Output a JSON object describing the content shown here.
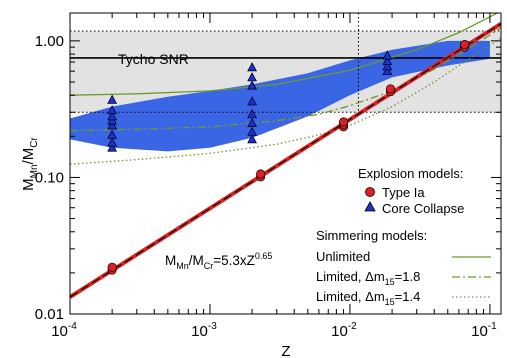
{
  "chart_data": {
    "type": "scatter",
    "xscale": "log",
    "yscale": "log",
    "xlim": [
      0.0001,
      0.12
    ],
    "ylim": [
      0.01,
      1.6
    ],
    "xlabel": "Z",
    "ylabel_parts": {
      "main": "M",
      "sub1": "Mn",
      "slash": "/M",
      "sub2": "Cr"
    },
    "x_ticks": [
      {
        "value": 0.0001,
        "base": "10",
        "exp": "-4"
      },
      {
        "value": 0.001,
        "base": "10",
        "exp": "-3"
      },
      {
        "value": 0.01,
        "base": "10",
        "exp": "-2"
      },
      {
        "value": 0.1,
        "base": "10",
        "exp": "-1"
      }
    ],
    "y_ticks": [
      {
        "value": 0.01,
        "label": "0.01"
      },
      {
        "value": 0.1,
        "label": "0.10"
      },
      {
        "value": 1.0,
        "label": "1.00"
      }
    ],
    "tycho": {
      "label": "Tycho SNR",
      "value": 0.75,
      "band_low": 0.3,
      "band_high": 1.18,
      "z_line": 0.0115
    },
    "relation_label": {
      "prefix": "M",
      "sub1": "Mn",
      "mid": "/M",
      "sub2": "Cr",
      "eq": "=5.3xZ",
      "exp": "0.65"
    },
    "relation": {
      "coef": 5.3,
      "exponent": 0.65
    },
    "type_ia": {
      "name": "Type Ia",
      "color": "#e02020",
      "points": [
        {
          "x": 0.0002,
          "y": 0.021
        },
        {
          "x": 0.0002,
          "y": 0.022
        },
        {
          "x": 0.0023,
          "y": 0.101
        },
        {
          "x": 0.0023,
          "y": 0.106
        },
        {
          "x": 0.009,
          "y": 0.235
        },
        {
          "x": 0.009,
          "y": 0.245
        },
        {
          "x": 0.009,
          "y": 0.255
        },
        {
          "x": 0.0195,
          "y": 0.425
        },
        {
          "x": 0.0195,
          "y": 0.445
        },
        {
          "x": 0.066,
          "y": 0.9
        },
        {
          "x": 0.066,
          "y": 0.94
        }
      ]
    },
    "core_collapse": {
      "name": "Core Collapse",
      "color": "#1c2fd0",
      "points": [
        {
          "x": 0.0002,
          "y": 0.165
        },
        {
          "x": 0.0002,
          "y": 0.18
        },
        {
          "x": 0.0002,
          "y": 0.205
        },
        {
          "x": 0.0002,
          "y": 0.24
        },
        {
          "x": 0.0002,
          "y": 0.26
        },
        {
          "x": 0.0002,
          "y": 0.28
        },
        {
          "x": 0.0002,
          "y": 0.31
        },
        {
          "x": 0.0002,
          "y": 0.37
        },
        {
          "x": 0.002,
          "y": 0.19
        },
        {
          "x": 0.002,
          "y": 0.215
        },
        {
          "x": 0.002,
          "y": 0.25
        },
        {
          "x": 0.002,
          "y": 0.29
        },
        {
          "x": 0.002,
          "y": 0.36
        },
        {
          "x": 0.002,
          "y": 0.47
        },
        {
          "x": 0.002,
          "y": 0.54
        },
        {
          "x": 0.002,
          "y": 0.64
        },
        {
          "x": 0.0185,
          "y": 0.6
        },
        {
          "x": 0.0185,
          "y": 0.65
        },
        {
          "x": 0.0185,
          "y": 0.71
        },
        {
          "x": 0.0185,
          "y": 0.78
        }
      ]
    },
    "cc_band": {
      "color": "#3a66e6",
      "x": [
        0.0001,
        0.0002,
        0.0005,
        0.001,
        0.002,
        0.005,
        0.01,
        0.02,
        0.05,
        0.1
      ],
      "low": [
        0.19,
        0.165,
        0.155,
        0.165,
        0.195,
        0.28,
        0.4,
        0.54,
        0.66,
        0.74
      ],
      "high": [
        0.27,
        0.33,
        0.39,
        0.43,
        0.48,
        0.58,
        0.72,
        0.86,
        1.0,
        1.0
      ]
    },
    "simmering": {
      "title": "Simmering models:",
      "color": "#6b9a2e",
      "unlimited": {
        "label": "Unlimited",
        "x": [
          0.0001,
          0.0003,
          0.001,
          0.003,
          0.01,
          0.03,
          0.06,
          0.1,
          0.12
        ],
        "y": [
          0.4,
          0.41,
          0.43,
          0.48,
          0.61,
          0.86,
          1.15,
          1.5,
          1.65
        ]
      },
      "limited_18": {
        "label_prefix": "Limited, Δm",
        "label_sub": "15",
        "label_suffix": "=1.8",
        "x": [
          0.0001,
          0.0003,
          0.001,
          0.003,
          0.006,
          0.01,
          0.02,
          0.04,
          0.08,
          0.12
        ],
        "y": [
          0.22,
          0.225,
          0.235,
          0.26,
          0.29,
          0.335,
          0.43,
          0.62,
          0.95,
          1.25
        ]
      },
      "limited_14": {
        "label_prefix": "Limited, Δm",
        "label_sub": "15",
        "label_suffix": "=1.4",
        "x": [
          0.0001,
          0.0003,
          0.001,
          0.003,
          0.006,
          0.01,
          0.02,
          0.04,
          0.08,
          0.12
        ],
        "y": [
          0.125,
          0.135,
          0.15,
          0.175,
          0.205,
          0.24,
          0.33,
          0.5,
          0.8,
          1.05
        ]
      }
    },
    "explosion_title": "Explosion models:",
    "colors": {
      "band_gray": "#e2e2e2",
      "fit_red": "#e02020",
      "fit_black": "#000000"
    }
  }
}
